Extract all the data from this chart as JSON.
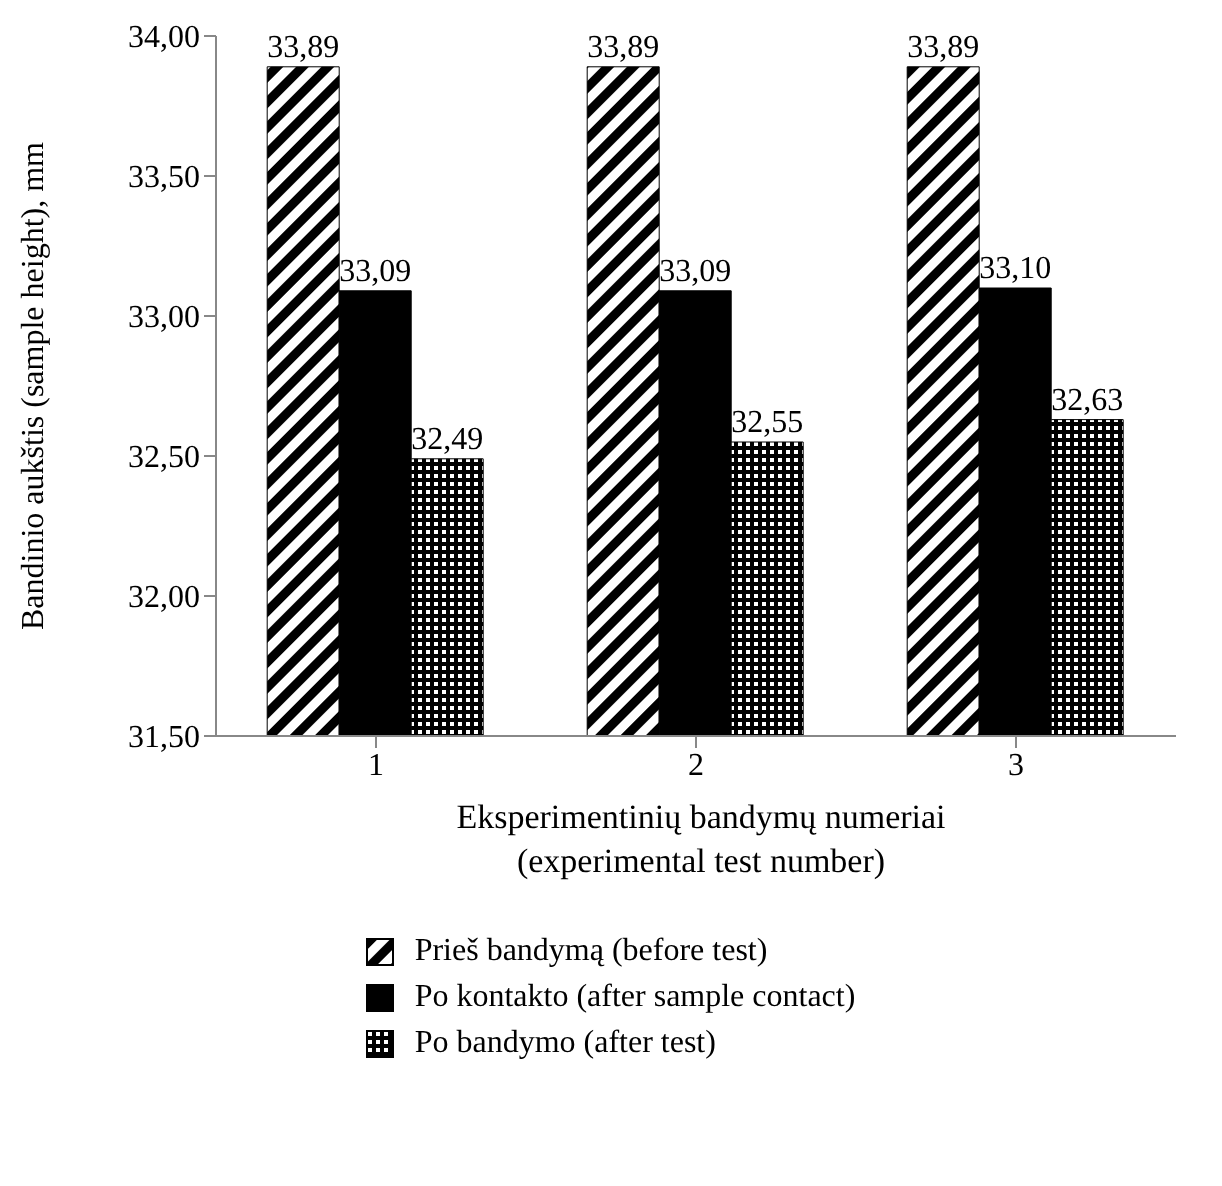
{
  "chart_data": {
    "type": "bar",
    "xlabel": "Eksperimentinių bandymų numeriai (experimental test number)",
    "ylabel": "Bandinio aukštis (sample height), mm",
    "categories": [
      "1",
      "2",
      "3"
    ],
    "series": [
      {
        "name": "Prieš bandymą (before test)",
        "color": "#000000",
        "values": [
          33.89,
          33.89,
          33.89
        ],
        "value_labels": [
          "33,89",
          "33,89",
          "33,89"
        ]
      },
      {
        "name": "Po kontakto (after sample contact)",
        "color": "#000000",
        "values": [
          33.09,
          33.09,
          33.1
        ],
        "value_labels": [
          "33,09",
          "33,09",
          "33,10"
        ]
      },
      {
        "name": "Po bandymo (after test)",
        "color": "#000000",
        "values": [
          32.49,
          32.55,
          32.63
        ],
        "value_labels": [
          "32,49",
          "32,55",
          "32,63"
        ]
      }
    ],
    "ylim": [
      31.5,
      34
    ],
    "yticks": [
      {
        "value": 31.5,
        "label": "31,50"
      },
      {
        "value": 32,
        "label": "32,00"
      },
      {
        "value": 32.5,
        "label": "32,50"
      },
      {
        "value": 33,
        "label": "33,00"
      },
      {
        "value": 33.5,
        "label": "33,50"
      },
      {
        "value": 34,
        "label": "34,00"
      }
    ],
    "grid": false,
    "legend": "bottom"
  }
}
